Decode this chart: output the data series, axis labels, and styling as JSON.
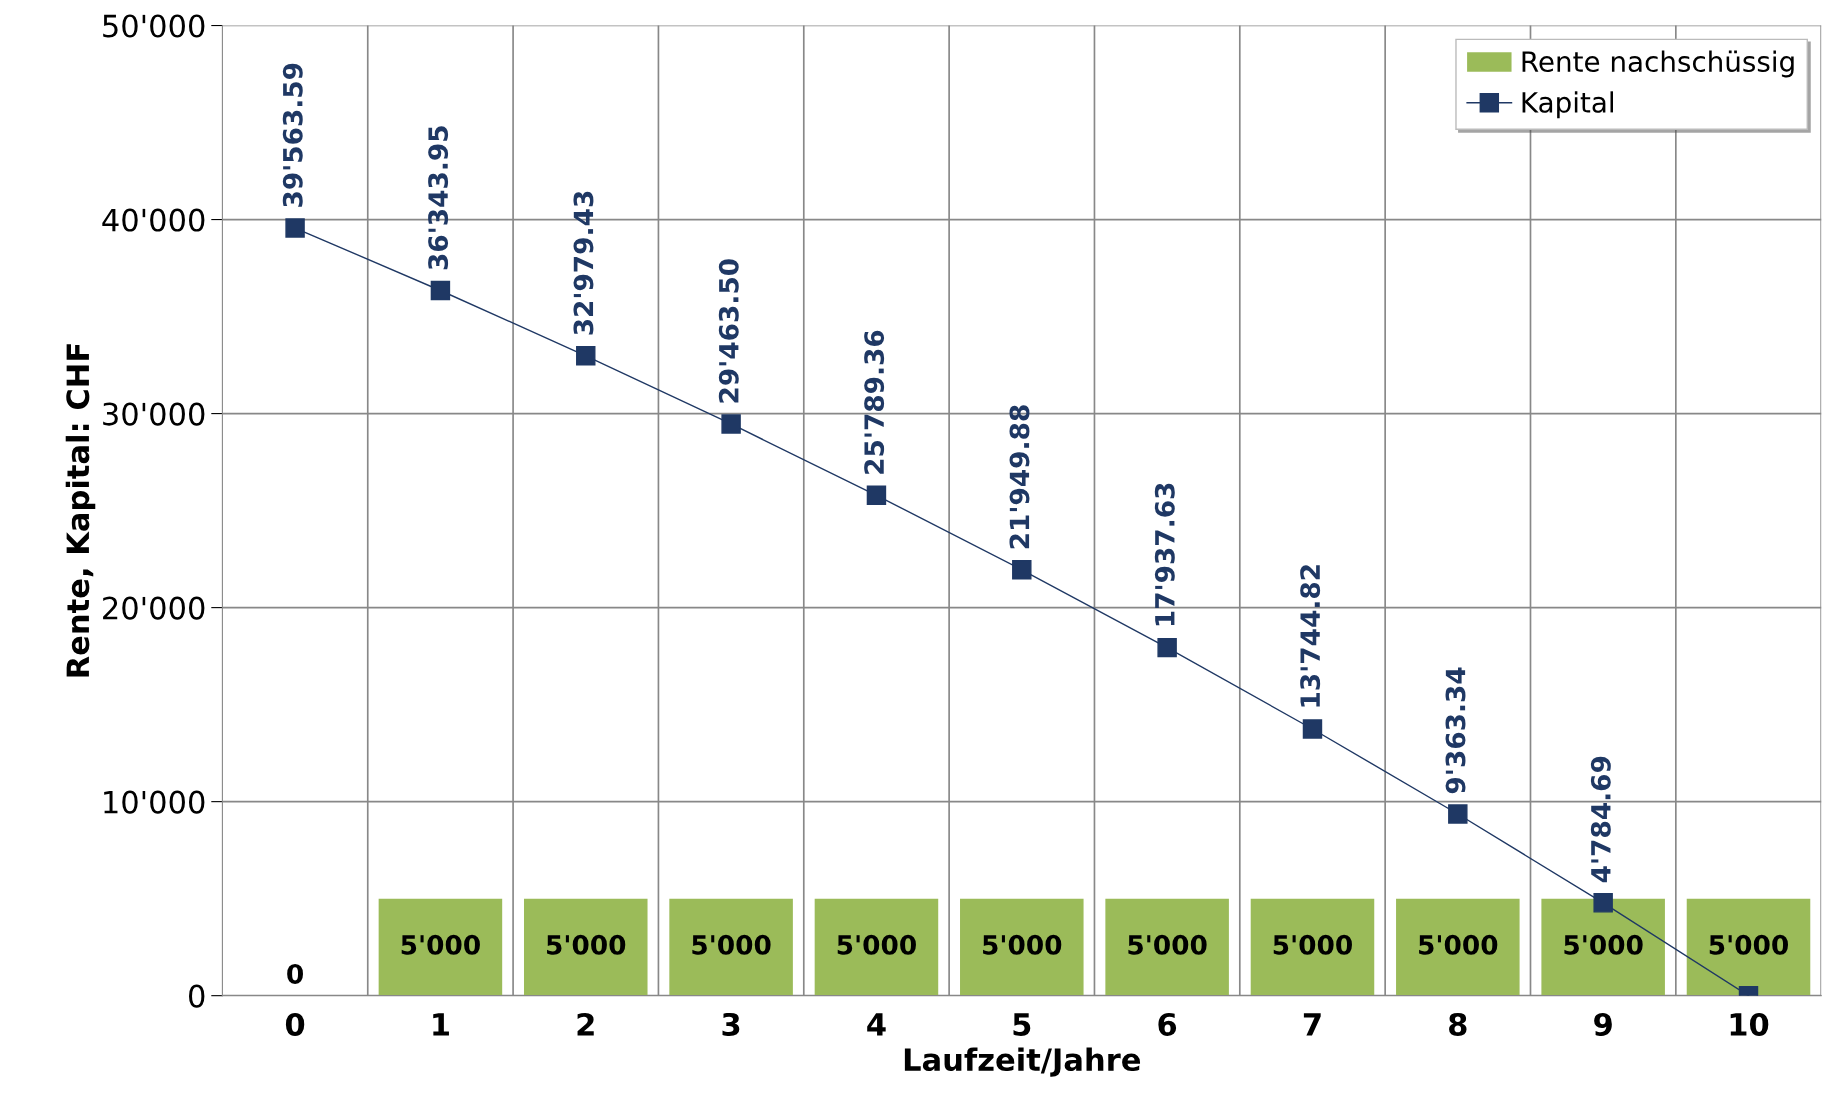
{
  "chart_data": {
    "type": "bar",
    "xlabel": "Laufzeit/Jahre",
    "ylabel": "Rente, Kapital: CHF",
    "categories": [
      "0",
      "1",
      "2",
      "3",
      "4",
      "5",
      "6",
      "7",
      "8",
      "9",
      "10"
    ],
    "series": [
      {
        "name": "Rente nachschüssig",
        "color": "#9bbb59",
        "values": [
          0,
          5000,
          5000,
          5000,
          5000,
          5000,
          5000,
          5000,
          5000,
          5000,
          5000
        ],
        "value_labels": [
          "0",
          "5'000",
          "5'000",
          "5'000",
          "5'000",
          "5'000",
          "5'000",
          "5'000",
          "5'000",
          "5'000",
          "5'000"
        ]
      },
      {
        "name": "Kapital",
        "type": "line",
        "color": "#1f3864",
        "marker": "square",
        "values": [
          39563.59,
          36343.95,
          32979.43,
          29463.5,
          25789.36,
          21949.88,
          17937.63,
          13744.82,
          9363.34,
          4784.69,
          0
        ],
        "value_labels": [
          "39'563.59",
          "36'343.95",
          "32'979.43",
          "29'463.50",
          "25'789.36",
          "21'949.88",
          "17'937.63",
          "13'744.82",
          "9'363.34",
          "4'784.69",
          null
        ]
      }
    ],
    "ylim": [
      0,
      50000
    ],
    "yticks": [
      {
        "value": 0,
        "label": "0"
      },
      {
        "value": 10000,
        "label": "10'000"
      },
      {
        "value": 20000,
        "label": "20'000"
      },
      {
        "value": 30000,
        "label": "30'000"
      },
      {
        "value": 40000,
        "label": "40'000"
      },
      {
        "value": 50000,
        "label": "50'000"
      }
    ],
    "grid": true,
    "legend": "top right"
  }
}
